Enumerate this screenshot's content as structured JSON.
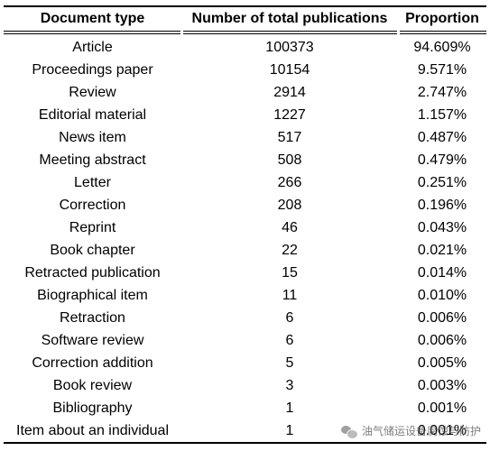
{
  "table": {
    "headers": [
      "Document type",
      "Number of total publications",
      "Proportion"
    ],
    "rows": [
      [
        "Article",
        "100373",
        "94.609%"
      ],
      [
        "Proceedings paper",
        "10154",
        "9.571%"
      ],
      [
        "Review",
        "2914",
        "2.747%"
      ],
      [
        "Editorial material",
        "1227",
        "1.157%"
      ],
      [
        "News item",
        "517",
        "0.487%"
      ],
      [
        "Meeting abstract",
        "508",
        "0.479%"
      ],
      [
        "Letter",
        "266",
        "0.251%"
      ],
      [
        "Correction",
        "208",
        "0.196%"
      ],
      [
        "Reprint",
        "46",
        "0.043%"
      ],
      [
        "Book chapter",
        "22",
        "0.021%"
      ],
      [
        "Retracted publication",
        "15",
        "0.014%"
      ],
      [
        "Biographical item",
        "11",
        "0.010%"
      ],
      [
        "Retraction",
        "6",
        "0.006%"
      ],
      [
        "Software review",
        "6",
        "0.006%"
      ],
      [
        "Correction addition",
        "5",
        "0.005%"
      ],
      [
        "Book review",
        "3",
        "0.003%"
      ],
      [
        "Bibliography",
        "1",
        "0.001%"
      ],
      [
        "Item about an individual",
        "1",
        "0.001%"
      ]
    ]
  },
  "watermark": {
    "icon": "wechat-icon",
    "text": "油气储运设备腐蚀与防护"
  }
}
